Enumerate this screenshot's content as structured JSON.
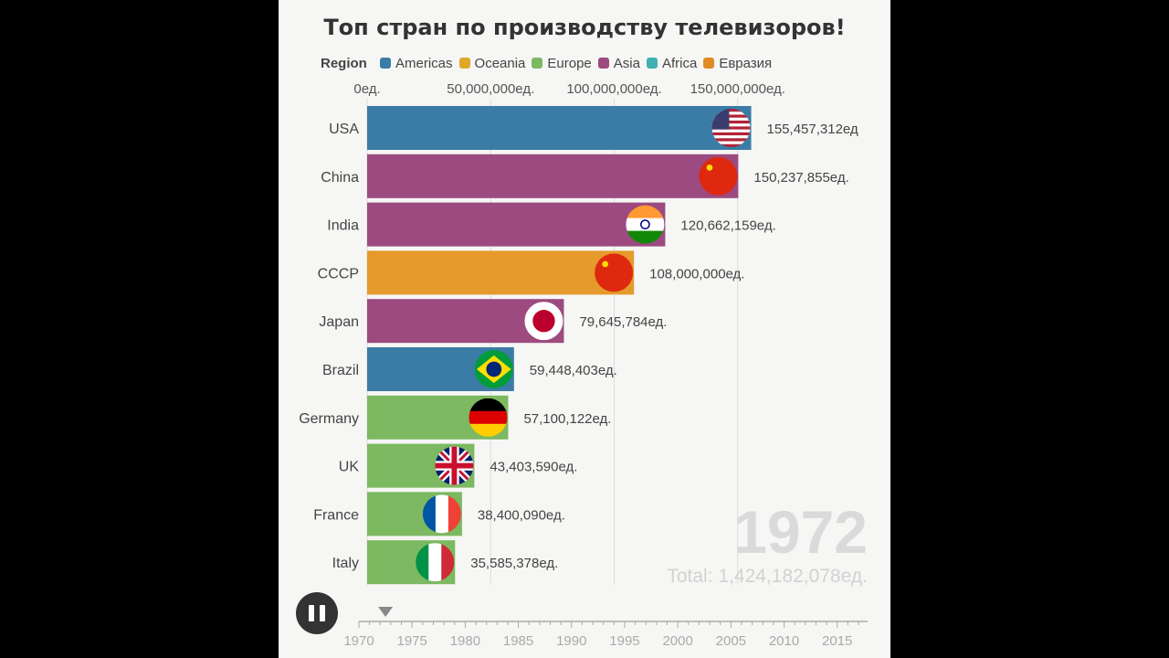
{
  "title": "Топ стран по производству телевизоров!",
  "legend": {
    "title": "Region",
    "items": [
      {
        "label": "Americas",
        "color": "#3a7ca5"
      },
      {
        "label": "Oceania",
        "color": "#e0a72a"
      },
      {
        "label": "Europe",
        "color": "#7cb960"
      },
      {
        "label": "Asia",
        "color": "#9c4a80"
      },
      {
        "label": "Africa",
        "color": "#3fb0b0"
      },
      {
        "label": "Евразия",
        "color": "#e08b24"
      }
    ]
  },
  "chart_data": {
    "type": "bar",
    "orientation": "horizontal",
    "title": "Топ стран по производству телевизоров!",
    "xlim": [
      0,
      200000000
    ],
    "x_ticks": [
      {
        "value": 0,
        "label": "0ед."
      },
      {
        "value": 50000000,
        "label": "50,000,000ед."
      },
      {
        "value": 100000000,
        "label": "100,000,000ед."
      },
      {
        "value": 150000000,
        "label": "150,000,000ед."
      }
    ],
    "bars": [
      {
        "category": "USA",
        "value": 155457312,
        "label": "155,457,312ед",
        "region": "Americas",
        "color": "#3a7ca5",
        "flag": "usa-flag-icon"
      },
      {
        "category": "China",
        "value": 150237855,
        "label": "150,237,855ед.",
        "region": "Asia",
        "color": "#9c4a80",
        "flag": "china-flag-icon"
      },
      {
        "category": "India",
        "value": 120662159,
        "label": "120,662,159ед.",
        "region": "Asia",
        "color": "#9c4a80",
        "flag": "india-flag-icon"
      },
      {
        "category": "CCCP",
        "value": 108000000,
        "label": "108,000,000ед.",
        "region": "Евразия",
        "color": "#e59a2b",
        "flag": "ussr-flag-icon"
      },
      {
        "category": "Japan",
        "value": 79645784,
        "label": "79,645,784ед.",
        "region": "Asia",
        "color": "#9c4a80",
        "flag": "japan-flag-icon"
      },
      {
        "category": "Brazil",
        "value": 59448403,
        "label": "59,448,403ед.",
        "region": "Americas",
        "color": "#3a7ca5",
        "flag": "brazil-flag-icon"
      },
      {
        "category": "Germany",
        "value": 57100122,
        "label": "57,100,122ед.",
        "region": "Europe",
        "color": "#7cb960",
        "flag": "germany-flag-icon"
      },
      {
        "category": "UK",
        "value": 43403590,
        "label": "43,403,590ед.",
        "region": "Europe",
        "color": "#7cb960",
        "flag": "uk-flag-icon"
      },
      {
        "category": "France",
        "value": 38400090,
        "label": "38,400,090ед.",
        "region": "Europe",
        "color": "#7cb960",
        "flag": "france-flag-icon"
      },
      {
        "category": "Italy",
        "value": 35585378,
        "label": "35,585,378ед.",
        "region": "Europe",
        "color": "#7cb960",
        "flag": "italy-flag-icon"
      }
    ],
    "year": "1972",
    "total": "Total: 1,424,182,078ед."
  },
  "timeline": {
    "ticks": [
      "1970",
      "1975",
      "1980",
      "1985",
      "1990",
      "1995",
      "2000",
      "2005",
      "2010",
      "2015"
    ],
    "range": [
      1970,
      2017
    ],
    "current": 1972.5
  }
}
